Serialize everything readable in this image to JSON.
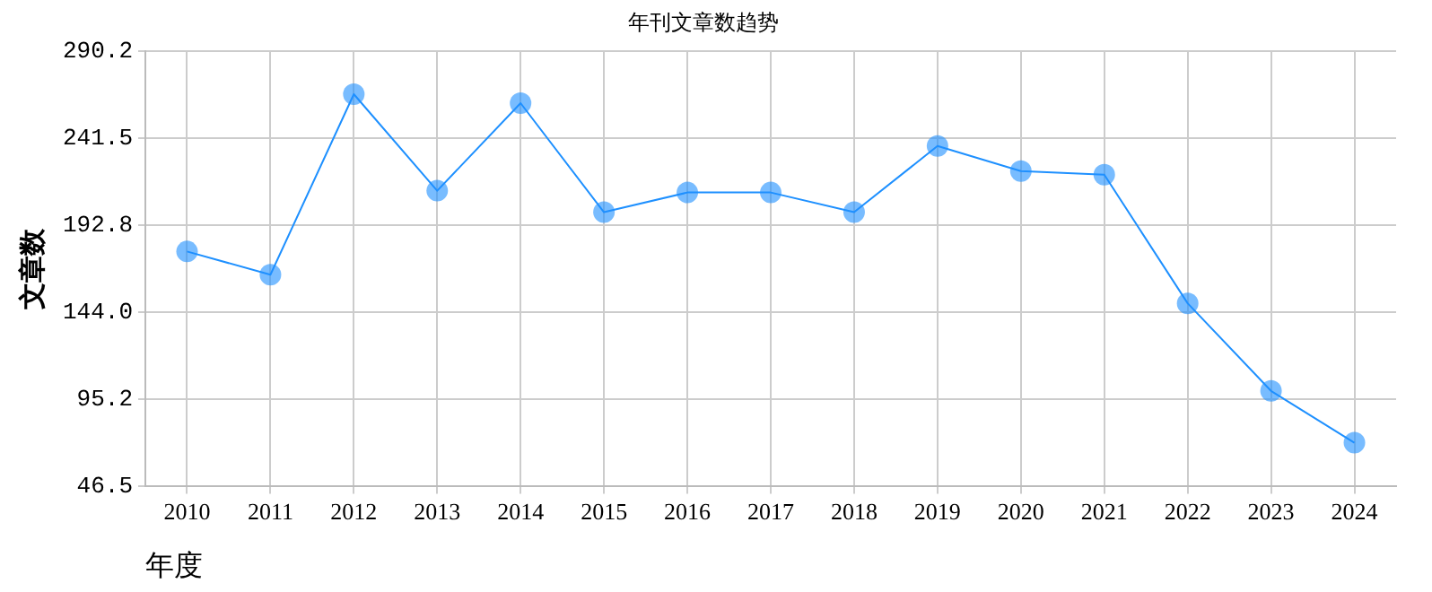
{
  "chart_data": {
    "type": "line",
    "title": "年刊文章数趋势",
    "xlabel": "年度",
    "ylabel": "文章数",
    "categories": [
      "2010",
      "2011",
      "2012",
      "2013",
      "2014",
      "2015",
      "2016",
      "2017",
      "2018",
      "2019",
      "2020",
      "2021",
      "2022",
      "2023",
      "2024"
    ],
    "series": [
      {
        "color": "#1e90ff",
        "values": [
          178,
          165,
          266,
          212,
          261,
          200,
          211,
          211,
          200,
          237,
          223,
          221,
          149,
          100,
          71
        ]
      }
    ],
    "ylim": [
      46.5,
      290.2
    ],
    "yticks": [
      {
        "value": 46.5,
        "label": "46.5"
      },
      {
        "value": 95.2,
        "label": "95.2"
      },
      {
        "value": 144,
        "label": "144.0"
      },
      {
        "value": 192.8,
        "label": "192.8"
      },
      {
        "value": 241.5,
        "label": "241.5"
      },
      {
        "value": 290.2,
        "label": "290.2"
      }
    ],
    "grid": true,
    "marker": "circle",
    "line_style": "solid",
    "legend": false
  }
}
